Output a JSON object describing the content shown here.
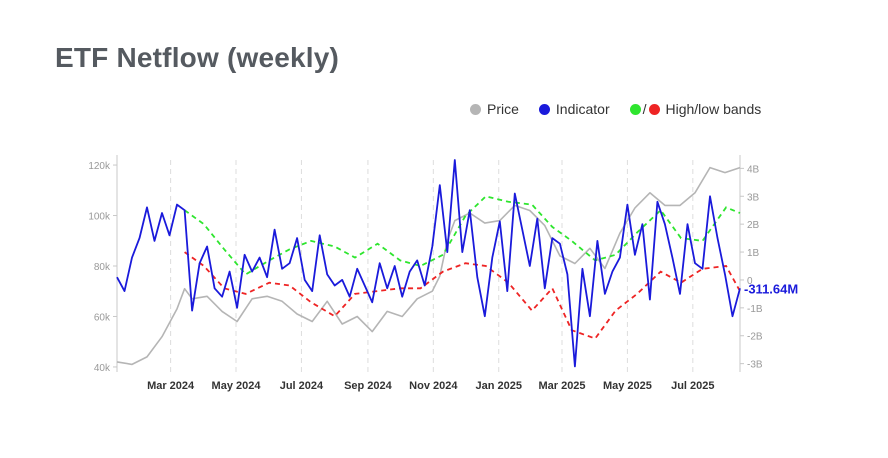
{
  "title": "ETF Netflow (weekly)",
  "legend": {
    "price": "Price",
    "indicator": "Indicator",
    "separator": "/",
    "bands": "High/low bands"
  },
  "colors": {
    "price": "#b5b5b5",
    "indicator": "#1a1adb",
    "high_band": "#2ee52e",
    "low_band": "#ee2424",
    "grid": "#dddddd"
  },
  "chart_data": {
    "type": "line",
    "x_ticks": [
      "Mar 2024",
      "May 2024",
      "Jul 2024",
      "Sep 2024",
      "Nov 2024",
      "Jan 2025",
      "Mar 2025",
      "May 2025",
      "Jul 2025"
    ],
    "x_tick_dates": [
      "2024-03-01",
      "2024-05-01",
      "2024-07-01",
      "2024-09-01",
      "2024-11-01",
      "2025-01-01",
      "2025-03-01",
      "2025-05-01",
      "2025-07-01"
    ],
    "xlim": [
      "2024-01-11",
      "2025-08-14"
    ],
    "left_axis": {
      "ticks": [
        "40k",
        "60k",
        "80k",
        "100k",
        "120k"
      ],
      "values": [
        40000,
        60000,
        80000,
        100000,
        120000
      ],
      "ylim": [
        38000,
        122000
      ]
    },
    "right_axis": {
      "ticks": [
        "-3B",
        "-2B",
        "-1B",
        "0",
        "1B",
        "2B",
        "3B",
        "4B"
      ],
      "values": [
        -3,
        -2,
        -1,
        0,
        1,
        2,
        3,
        4
      ],
      "ylim": [
        -3.3,
        4.3
      ],
      "unit": "B"
    },
    "last_value_label": "-311.64M",
    "grid": "vertical dashed at x ticks",
    "legend_position": "top-right",
    "series": [
      {
        "name": "Price",
        "axis": "left",
        "x": [
          "2024-01-11",
          "2024-01-25",
          "2024-02-08",
          "2024-02-22",
          "2024-03-07",
          "2024-03-14",
          "2024-03-21",
          "2024-04-04",
          "2024-04-18",
          "2024-05-02",
          "2024-05-16",
          "2024-05-30",
          "2024-06-13",
          "2024-06-27",
          "2024-07-11",
          "2024-07-25",
          "2024-08-08",
          "2024-08-22",
          "2024-09-05",
          "2024-09-19",
          "2024-10-03",
          "2024-10-17",
          "2024-10-31",
          "2024-11-07",
          "2024-11-14",
          "2024-11-21",
          "2024-12-05",
          "2024-12-19",
          "2025-01-02",
          "2025-01-16",
          "2025-01-30",
          "2025-02-13",
          "2025-02-27",
          "2025-03-13",
          "2025-03-27",
          "2025-04-10",
          "2025-04-24",
          "2025-05-08",
          "2025-05-22",
          "2025-06-05",
          "2025-06-19",
          "2025-07-03",
          "2025-07-17",
          "2025-07-31",
          "2025-08-14"
        ],
        "values": [
          42000,
          41000,
          44000,
          52000,
          63000,
          71000,
          67000,
          68000,
          62000,
          58000,
          67000,
          68000,
          66000,
          61000,
          58000,
          66000,
          57000,
          60000,
          54000,
          62000,
          60000,
          67000,
          70000,
          76000,
          90000,
          98000,
          101000,
          97000,
          98000,
          104000,
          102000,
          96000,
          84000,
          81000,
          87000,
          79000,
          93000,
          103000,
          109000,
          104000,
          104000,
          109000,
          119000,
          117000,
          119000
        ]
      },
      {
        "name": "Indicator",
        "axis": "right",
        "x": [
          "2024-01-11",
          "2024-01-18",
          "2024-01-25",
          "2024-02-01",
          "2024-02-08",
          "2024-02-15",
          "2024-02-22",
          "2024-02-29",
          "2024-03-07",
          "2024-03-14",
          "2024-03-21",
          "2024-03-28",
          "2024-04-04",
          "2024-04-11",
          "2024-04-18",
          "2024-04-25",
          "2024-05-02",
          "2024-05-09",
          "2024-05-16",
          "2024-05-23",
          "2024-05-30",
          "2024-06-06",
          "2024-06-13",
          "2024-06-20",
          "2024-06-27",
          "2024-07-04",
          "2024-07-11",
          "2024-07-18",
          "2024-07-25",
          "2024-08-01",
          "2024-08-08",
          "2024-08-15",
          "2024-08-22",
          "2024-08-29",
          "2024-09-05",
          "2024-09-12",
          "2024-09-19",
          "2024-09-26",
          "2024-10-03",
          "2024-10-10",
          "2024-10-17",
          "2024-10-24",
          "2024-10-31",
          "2024-11-07",
          "2024-11-14",
          "2024-11-21",
          "2024-11-28",
          "2024-12-05",
          "2024-12-12",
          "2024-12-19",
          "2024-12-26",
          "2025-01-02",
          "2025-01-09",
          "2025-01-16",
          "2025-01-23",
          "2025-01-30",
          "2025-02-06",
          "2025-02-13",
          "2025-02-20",
          "2025-02-27",
          "2025-03-06",
          "2025-03-13",
          "2025-03-20",
          "2025-03-27",
          "2025-04-03",
          "2025-04-10",
          "2025-04-17",
          "2025-04-24",
          "2025-05-01",
          "2025-05-08",
          "2025-05-15",
          "2025-05-22",
          "2025-05-29",
          "2025-06-05",
          "2025-06-12",
          "2025-06-19",
          "2025-06-26",
          "2025-07-03",
          "2025-07-10",
          "2025-07-17",
          "2025-07-24",
          "2025-07-31",
          "2025-08-07",
          "2025-08-14"
        ],
        "values": [
          0.1,
          -0.4,
          0.8,
          1.5,
          2.6,
          1.4,
          2.4,
          1.6,
          2.7,
          2.5,
          -1.1,
          0.6,
          1.2,
          -0.3,
          -0.6,
          0.3,
          -1.0,
          0.9,
          0.3,
          0.8,
          0.1,
          1.8,
          0.4,
          0.6,
          1.5,
          0.0,
          -0.4,
          1.6,
          0.2,
          -0.2,
          0.0,
          -0.6,
          0.4,
          -0.2,
          -0.8,
          0.6,
          -0.3,
          0.5,
          -0.6,
          0.3,
          0.7,
          -0.2,
          1.2,
          3.4,
          1.0,
          4.3,
          1.0,
          2.5,
          0.1,
          -1.3,
          0.8,
          2.1,
          -0.4,
          3.1,
          1.8,
          0.5,
          2.2,
          -0.3,
          1.5,
          1.3,
          0.2,
          -3.1,
          0.4,
          -1.3,
          1.4,
          -0.5,
          0.3,
          0.8,
          2.7,
          0.9,
          2.0,
          -0.7,
          2.8,
          2.0,
          0.8,
          -0.5,
          2.0,
          0.6,
          0.4,
          3.0,
          1.5,
          0.2,
          -1.3,
          -0.3
        ]
      },
      {
        "name": "High band",
        "axis": "right",
        "x": [
          "2024-03-14",
          "2024-04-01",
          "2024-04-20",
          "2024-05-10",
          "2024-06-01",
          "2024-06-20",
          "2024-07-10",
          "2024-08-01",
          "2024-08-20",
          "2024-09-10",
          "2024-10-01",
          "2024-10-20",
          "2024-11-10",
          "2024-12-01",
          "2024-12-20",
          "2025-01-10",
          "2025-02-01",
          "2025-02-20",
          "2025-03-10",
          "2025-04-01",
          "2025-04-20",
          "2025-05-10",
          "2025-06-01",
          "2025-06-20",
          "2025-07-10",
          "2025-08-01",
          "2025-08-14"
        ],
        "values": [
          2.5,
          2.0,
          1.1,
          0.2,
          0.7,
          1.1,
          1.4,
          1.2,
          0.8,
          1.3,
          0.7,
          0.5,
          0.9,
          2.3,
          3.0,
          2.8,
          2.7,
          1.9,
          1.4,
          0.7,
          0.9,
          1.7,
          2.5,
          1.5,
          1.4,
          2.6,
          2.4
        ]
      },
      {
        "name": "Low band",
        "axis": "right",
        "x": [
          "2024-03-14",
          "2024-04-01",
          "2024-04-20",
          "2024-05-10",
          "2024-06-01",
          "2024-06-20",
          "2024-07-10",
          "2024-08-01",
          "2024-08-20",
          "2024-09-10",
          "2024-10-01",
          "2024-10-20",
          "2024-11-10",
          "2024-12-01",
          "2024-12-20",
          "2025-01-10",
          "2025-02-01",
          "2025-02-20",
          "2025-03-10",
          "2025-04-01",
          "2025-04-20",
          "2025-05-10",
          "2025-06-01",
          "2025-06-20",
          "2025-07-10",
          "2025-08-01",
          "2025-08-14"
        ],
        "values": [
          1.0,
          0.5,
          -0.3,
          -0.5,
          -0.1,
          -0.2,
          -0.8,
          -1.3,
          -0.5,
          -0.4,
          -0.3,
          -0.3,
          0.3,
          0.6,
          0.5,
          -0.1,
          -1.1,
          -0.3,
          -1.8,
          -2.1,
          -1.1,
          -0.5,
          0.3,
          -0.1,
          0.4,
          0.5,
          -0.4
        ]
      }
    ]
  }
}
